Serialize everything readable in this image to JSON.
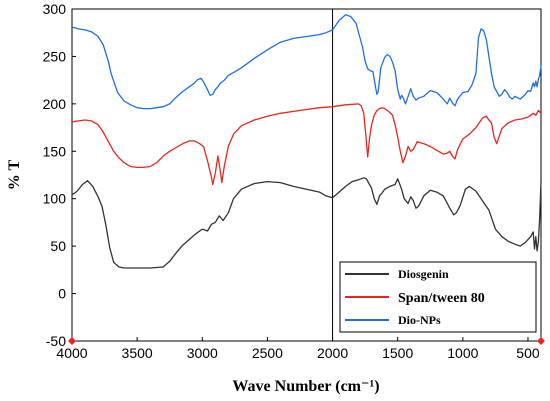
{
  "chart_data": {
    "type": "line",
    "xlabel": "Wave Number (cm⁻¹)",
    "ylabel": "% T",
    "xlim": [
      4000,
      400
    ],
    "ylim": [
      -50,
      300
    ],
    "x_ticks": [
      4000,
      3500,
      3000,
      2500,
      2000,
      1500,
      1000,
      500
    ],
    "y_ticks": [
      -50,
      0,
      50,
      100,
      150,
      200,
      250,
      300
    ],
    "reference_line_x": 2000,
    "grid": false,
    "legend_position": "bottom-right",
    "series": [
      {
        "name": "Diosgenin",
        "color": "#333333",
        "points": [
          [
            4000,
            104
          ],
          [
            3960,
            108
          ],
          [
            3920,
            115
          ],
          [
            3880,
            119
          ],
          [
            3840,
            113
          ],
          [
            3800,
            102
          ],
          [
            3770,
            92
          ],
          [
            3740,
            72
          ],
          [
            3710,
            48
          ],
          [
            3680,
            33
          ],
          [
            3640,
            28
          ],
          [
            3600,
            27
          ],
          [
            3500,
            27
          ],
          [
            3400,
            27
          ],
          [
            3300,
            28
          ],
          [
            3250,
            34
          ],
          [
            3200,
            43
          ],
          [
            3150,
            51
          ],
          [
            3100,
            57
          ],
          [
            3050,
            63
          ],
          [
            3000,
            68
          ],
          [
            2960,
            66
          ],
          [
            2930,
            73
          ],
          [
            2900,
            75
          ],
          [
            2870,
            82
          ],
          [
            2840,
            77
          ],
          [
            2800,
            85
          ],
          [
            2760,
            100
          ],
          [
            2700,
            110
          ],
          [
            2600,
            116
          ],
          [
            2500,
            118
          ],
          [
            2400,
            117
          ],
          [
            2300,
            113
          ],
          [
            2200,
            110
          ],
          [
            2100,
            107
          ],
          [
            2050,
            103
          ],
          [
            2000,
            101
          ],
          [
            1950,
            107
          ],
          [
            1900,
            113
          ],
          [
            1850,
            118
          ],
          [
            1800,
            120
          ],
          [
            1760,
            122
          ],
          [
            1740,
            121
          ],
          [
            1700,
            111
          ],
          [
            1680,
            100
          ],
          [
            1660,
            94
          ],
          [
            1640,
            103
          ],
          [
            1620,
            106
          ],
          [
            1600,
            110
          ],
          [
            1560,
            113
          ],
          [
            1520,
            115
          ],
          [
            1500,
            121
          ],
          [
            1470,
            110
          ],
          [
            1450,
            100
          ],
          [
            1420,
            95
          ],
          [
            1400,
            102
          ],
          [
            1380,
            98
          ],
          [
            1360,
            90
          ],
          [
            1340,
            92
          ],
          [
            1300,
            103
          ],
          [
            1250,
            109
          ],
          [
            1200,
            107
          ],
          [
            1150,
            103
          ],
          [
            1100,
            90
          ],
          [
            1070,
            83
          ],
          [
            1050,
            85
          ],
          [
            1020,
            93
          ],
          [
            980,
            110
          ],
          [
            950,
            113
          ],
          [
            900,
            108
          ],
          [
            860,
            100
          ],
          [
            800,
            88
          ],
          [
            750,
            68
          ],
          [
            700,
            60
          ],
          [
            650,
            55
          ],
          [
            600,
            52
          ],
          [
            560,
            50
          ],
          [
            520,
            54
          ],
          [
            480,
            60
          ],
          [
            460,
            65
          ],
          [
            450,
            47
          ],
          [
            440,
            60
          ],
          [
            430,
            45
          ],
          [
            420,
            55
          ],
          [
            410,
            80
          ],
          [
            400,
            118
          ]
        ]
      },
      {
        "name": "Span/tween 80",
        "color": "#e8261e",
        "points": [
          [
            4000,
            181
          ],
          [
            3950,
            182
          ],
          [
            3900,
            183
          ],
          [
            3850,
            182
          ],
          [
            3800,
            178
          ],
          [
            3760,
            170
          ],
          [
            3720,
            160
          ],
          [
            3680,
            150
          ],
          [
            3640,
            143
          ],
          [
            3600,
            138
          ],
          [
            3550,
            134
          ],
          [
            3500,
            133
          ],
          [
            3450,
            133
          ],
          [
            3400,
            134
          ],
          [
            3350,
            138
          ],
          [
            3300,
            145
          ],
          [
            3250,
            150
          ],
          [
            3200,
            154
          ],
          [
            3150,
            158
          ],
          [
            3100,
            161
          ],
          [
            3060,
            161
          ],
          [
            3020,
            158
          ],
          [
            2990,
            155
          ],
          [
            2960,
            140
          ],
          [
            2930,
            123
          ],
          [
            2920,
            115
          ],
          [
            2900,
            127
          ],
          [
            2880,
            145
          ],
          [
            2860,
            128
          ],
          [
            2850,
            117
          ],
          [
            2830,
            135
          ],
          [
            2800,
            155
          ],
          [
            2760,
            168
          ],
          [
            2700,
            177
          ],
          [
            2600,
            183
          ],
          [
            2500,
            187
          ],
          [
            2400,
            190
          ],
          [
            2300,
            192
          ],
          [
            2200,
            194
          ],
          [
            2100,
            196
          ],
          [
            2000,
            197
          ],
          [
            1900,
            199
          ],
          [
            1800,
            200
          ],
          [
            1780,
            198
          ],
          [
            1760,
            190
          ],
          [
            1740,
            160
          ],
          [
            1730,
            144
          ],
          [
            1715,
            165
          ],
          [
            1700,
            178
          ],
          [
            1680,
            188
          ],
          [
            1660,
            193
          ],
          [
            1640,
            195
          ],
          [
            1620,
            196
          ],
          [
            1600,
            195
          ],
          [
            1570,
            192
          ],
          [
            1540,
            188
          ],
          [
            1520,
            178
          ],
          [
            1500,
            165
          ],
          [
            1480,
            150
          ],
          [
            1460,
            138
          ],
          [
            1440,
            145
          ],
          [
            1420,
            155
          ],
          [
            1400,
            150
          ],
          [
            1380,
            152
          ],
          [
            1350,
            160
          ],
          [
            1300,
            158
          ],
          [
            1250,
            155
          ],
          [
            1200,
            151
          ],
          [
            1150,
            147
          ],
          [
            1120,
            148
          ],
          [
            1100,
            150
          ],
          [
            1080,
            145
          ],
          [
            1060,
            142
          ],
          [
            1040,
            152
          ],
          [
            1000,
            163
          ],
          [
            950,
            168
          ],
          [
            900,
            175
          ],
          [
            850,
            185
          ],
          [
            820,
            187
          ],
          [
            800,
            183
          ],
          [
            780,
            180
          ],
          [
            760,
            165
          ],
          [
            740,
            158
          ],
          [
            720,
            166
          ],
          [
            700,
            174
          ],
          [
            650,
            180
          ],
          [
            600,
            183
          ],
          [
            550,
            184
          ],
          [
            500,
            186
          ],
          [
            460,
            190
          ],
          [
            440,
            188
          ],
          [
            420,
            193
          ],
          [
            400,
            190
          ]
        ]
      },
      {
        "name": "Dio-NPs",
        "color": "#1f6fe0",
        "points": [
          [
            4000,
            281
          ],
          [
            3950,
            279
          ],
          [
            3900,
            278
          ],
          [
            3850,
            276
          ],
          [
            3800,
            271
          ],
          [
            3760,
            262
          ],
          [
            3720,
            244
          ],
          [
            3700,
            232
          ],
          [
            3680,
            224
          ],
          [
            3650,
            212
          ],
          [
            3600,
            203
          ],
          [
            3550,
            199
          ],
          [
            3500,
            196
          ],
          [
            3450,
            195
          ],
          [
            3400,
            195
          ],
          [
            3350,
            196
          ],
          [
            3300,
            197
          ],
          [
            3250,
            200
          ],
          [
            3200,
            207
          ],
          [
            3150,
            213
          ],
          [
            3100,
            218
          ],
          [
            3060,
            222
          ],
          [
            3040,
            225
          ],
          [
            3010,
            227
          ],
          [
            2990,
            223
          ],
          [
            2960,
            215
          ],
          [
            2940,
            209
          ],
          [
            2920,
            210
          ],
          [
            2900,
            215
          ],
          [
            2880,
            218
          ],
          [
            2860,
            222
          ],
          [
            2830,
            225
          ],
          [
            2800,
            230
          ],
          [
            2760,
            233
          ],
          [
            2700,
            238
          ],
          [
            2600,
            248
          ],
          [
            2500,
            257
          ],
          [
            2400,
            265
          ],
          [
            2300,
            269
          ],
          [
            2200,
            271
          ],
          [
            2100,
            273
          ],
          [
            2050,
            275
          ],
          [
            2000,
            278
          ],
          [
            1950,
            288
          ],
          [
            1900,
            294
          ],
          [
            1860,
            292
          ],
          [
            1820,
            285
          ],
          [
            1790,
            270
          ],
          [
            1770,
            260
          ],
          [
            1750,
            245
          ],
          [
            1730,
            237
          ],
          [
            1710,
            235
          ],
          [
            1690,
            234
          ],
          [
            1670,
            218
          ],
          [
            1660,
            210
          ],
          [
            1650,
            213
          ],
          [
            1630,
            238
          ],
          [
            1600,
            249
          ],
          [
            1580,
            252
          ],
          [
            1560,
            250
          ],
          [
            1540,
            244
          ],
          [
            1520,
            235
          ],
          [
            1500,
            215
          ],
          [
            1480,
            205
          ],
          [
            1470,
            209
          ],
          [
            1460,
            207
          ],
          [
            1440,
            200
          ],
          [
            1420,
            208
          ],
          [
            1400,
            216
          ],
          [
            1380,
            208
          ],
          [
            1360,
            204
          ],
          [
            1340,
            206
          ],
          [
            1300,
            208
          ],
          [
            1250,
            214
          ],
          [
            1200,
            212
          ],
          [
            1150,
            205
          ],
          [
            1120,
            200
          ],
          [
            1100,
            206
          ],
          [
            1080,
            201
          ],
          [
            1060,
            198
          ],
          [
            1040,
            205
          ],
          [
            1000,
            212
          ],
          [
            960,
            213
          ],
          [
            930,
            220
          ],
          [
            900,
            232
          ],
          [
            880,
            270
          ],
          [
            860,
            279
          ],
          [
            840,
            277
          ],
          [
            820,
            268
          ],
          [
            800,
            250
          ],
          [
            780,
            232
          ],
          [
            760,
            218
          ],
          [
            740,
            213
          ],
          [
            720,
            208
          ],
          [
            700,
            210
          ],
          [
            680,
            215
          ],
          [
            660,
            212
          ],
          [
            640,
            207
          ],
          [
            620,
            205
          ],
          [
            600,
            208
          ],
          [
            560,
            205
          ],
          [
            520,
            210
          ],
          [
            500,
            214
          ],
          [
            480,
            213
          ],
          [
            460,
            222
          ],
          [
            450,
            218
          ],
          [
            440,
            224
          ],
          [
            430,
            218
          ],
          [
            420,
            226
          ],
          [
            410,
            230
          ],
          [
            400,
            240
          ]
        ]
      }
    ]
  }
}
